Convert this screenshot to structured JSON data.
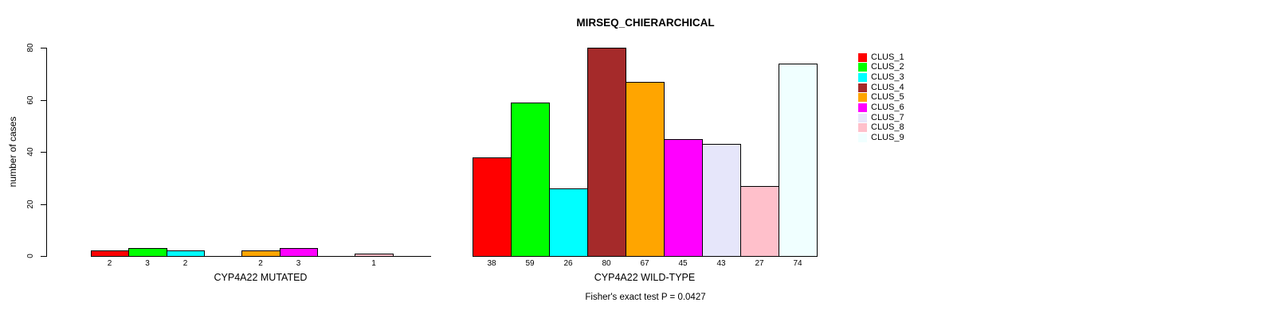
{
  "chart_data": {
    "type": "bar",
    "title": "MIRSEQ_CHIERARCHICAL",
    "ylabel": "number of cases",
    "xlabel": "",
    "ylim": [
      0,
      80
    ],
    "yticks": [
      0,
      20,
      40,
      60,
      80
    ],
    "grid": false,
    "legend_position": "right",
    "clusters": [
      "CLUS_1",
      "CLUS_2",
      "CLUS_3",
      "CLUS_4",
      "CLUS_5",
      "CLUS_6",
      "CLUS_7",
      "CLUS_8",
      "CLUS_9"
    ],
    "colors": [
      "#FF0000",
      "#00FF00",
      "#00FFFF",
      "#A52A2A",
      "#FFA500",
      "#FF00FF",
      "#E6E6FA",
      "#FFC0CB",
      "#F0FFFF"
    ],
    "groups": [
      {
        "label": "CYP4A22 MUTATED",
        "values": [
          2,
          3,
          2,
          0,
          2,
          3,
          0,
          1,
          0
        ]
      },
      {
        "label": "CYP4A22 WILD-TYPE",
        "values": [
          38,
          59,
          26,
          80,
          67,
          45,
          43,
          27,
          74
        ]
      }
    ],
    "bar_value_labels_shown": true,
    "annotation": "Fisher's exact test P = 0.0427"
  }
}
